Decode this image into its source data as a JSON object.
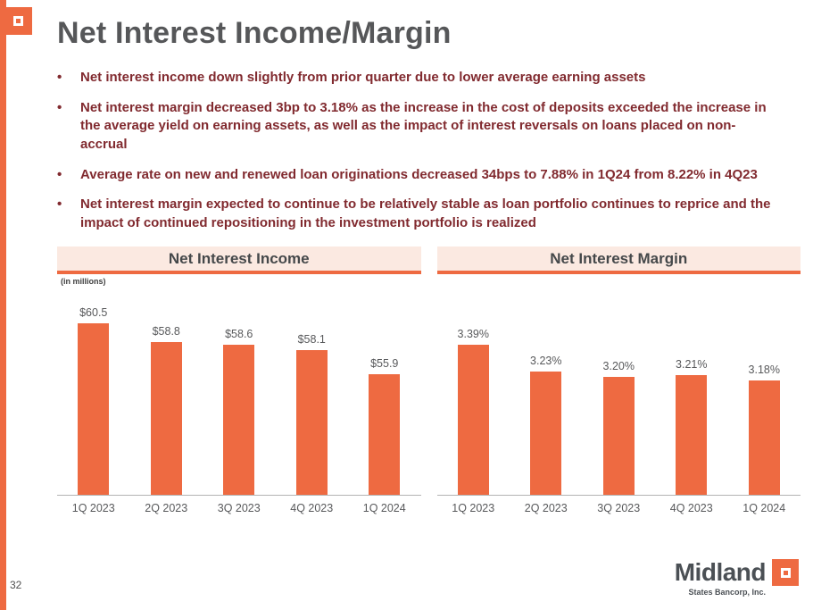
{
  "title": "Net Interest Income/Margin",
  "bullets": [
    "Net interest income down slightly from prior quarter due to lower average earning assets",
    "Net interest margin decreased 3bp to 3.18% as the increase in the cost of deposits exceeded the increase in the average yield on earning assets, as well as the impact of interest reversals on loans placed on non-accrual",
    "Average rate on new and renewed loan originations decreased 34bps to 7.88% in 1Q24 from 8.22% in 4Q23",
    "Net interest margin expected to continue to be relatively stable as loan portfolio continues to reprice and the impact of continued repositioning in the investment portfolio is realized"
  ],
  "colors": {
    "accent": "#ee6a41",
    "bullet_text": "#812a2f",
    "header_bg": "#fbe9e1",
    "title_text": "#565759"
  },
  "chart_data": [
    {
      "type": "bar",
      "title": "Net Interest Income",
      "note": "(in millions)",
      "categories": [
        "1Q 2023",
        "2Q 2023",
        "3Q 2023",
        "4Q 2023",
        "1Q 2024"
      ],
      "values": [
        60.5,
        58.8,
        58.6,
        58.1,
        55.9
      ],
      "labels": [
        "$60.5",
        "$58.8",
        "$58.6",
        "$58.1",
        "$55.9"
      ],
      "xlabel": "",
      "ylabel": "",
      "ylim": [
        45,
        62
      ],
      "grid": false,
      "legend": false
    },
    {
      "type": "bar",
      "title": "Net Interest Margin",
      "categories": [
        "1Q 2023",
        "2Q 2023",
        "3Q 2023",
        "4Q 2023",
        "1Q 2024"
      ],
      "values": [
        3.39,
        3.23,
        3.2,
        3.21,
        3.18
      ],
      "labels": [
        "3.39%",
        "3.23%",
        "3.20%",
        "3.21%",
        "3.18%"
      ],
      "xlabel": "",
      "ylabel": "",
      "ylim": [
        2.5,
        3.5
      ],
      "grid": false,
      "legend": false
    }
  ],
  "page": {
    "number": "32"
  },
  "brand": {
    "name": "Midland",
    "subtitle": "States Bancorp, Inc."
  }
}
